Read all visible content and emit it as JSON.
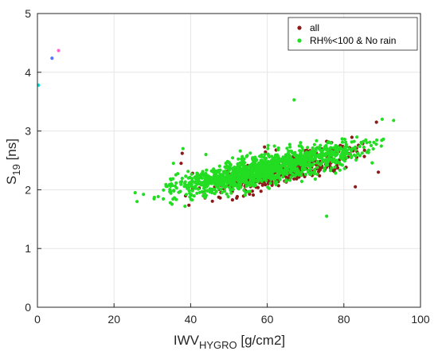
{
  "chart_data": {
    "type": "scatter",
    "xlabel": {
      "main": "IWV",
      "sub": "HYGRO",
      "unit": " [g/cm2]"
    },
    "ylabel": {
      "main": "S",
      "sub": "19",
      "unit": " [ns]"
    },
    "xlim": [
      0,
      100
    ],
    "ylim": [
      0,
      5
    ],
    "xticks": [
      "0",
      "20",
      "40",
      "60",
      "80",
      "100"
    ],
    "yticks": [
      "0",
      "1",
      "2",
      "3",
      "4",
      "5"
    ],
    "grid": true,
    "legend_position": "top-right",
    "series": [
      {
        "name": "all",
        "color": "#8b1a1a",
        "cluster": {
          "x_range": [
            36,
            90
          ],
          "y_at_x_start": 1.9,
          "y_at_x_end": 2.75,
          "spread": 0.22,
          "count": 500
        },
        "points": [
          [
            88.5,
            3.15
          ],
          [
            37.5,
            2.45
          ],
          [
            37.8,
            2.62
          ],
          [
            40.5,
            2.28
          ],
          [
            83,
            2.05
          ],
          [
            89,
            2.3
          ]
        ]
      },
      {
        "name": "RH%<100 & No rain",
        "color": "#22dd22",
        "cluster": {
          "x_range": [
            25,
            94
          ],
          "y_at_x_start": 1.85,
          "y_at_x_end": 2.85,
          "spread": 0.22,
          "count": 1300
        },
        "points": [
          [
            67,
            3.53
          ],
          [
            75.5,
            1.55
          ],
          [
            26,
            1.8
          ],
          [
            90,
            3.2
          ],
          [
            93,
            3.18
          ],
          [
            38,
            2.7
          ],
          [
            25.5,
            1.95
          ],
          [
            35.5,
            2.45
          ],
          [
            44,
            2.6
          ]
        ]
      }
    ],
    "outliers": [
      {
        "x": 0.3,
        "y": 3.78,
        "color": "#00e0e0"
      },
      {
        "x": 3.8,
        "y": 4.24,
        "color": "#5577ff"
      },
      {
        "x": 5.5,
        "y": 4.37,
        "color": "#ff66cc"
      }
    ]
  }
}
